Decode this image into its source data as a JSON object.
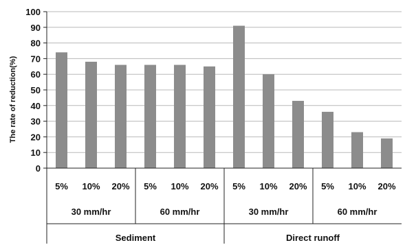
{
  "chart_data": {
    "type": "bar",
    "title": "",
    "ylabel": "The rate of reduction(%)",
    "xlabel": "",
    "ylim": [
      0,
      100
    ],
    "yticks": [
      0,
      10,
      20,
      30,
      40,
      50,
      60,
      70,
      80,
      90,
      100
    ],
    "grid": true,
    "legend": "none",
    "bar_color": "#8c8c8c",
    "categories": [
      "5%",
      "10%",
      "20%",
      "5%",
      "10%",
      "20%",
      "5%",
      "10%",
      "20%",
      "5%",
      "10%",
      "20%"
    ],
    "values": [
      74,
      68,
      66,
      66,
      66,
      65,
      91,
      60,
      43,
      36,
      23,
      19
    ],
    "groups_level1": [
      {
        "label": "30 mm/hr",
        "span": 3
      },
      {
        "label": "60 mm/hr",
        "span": 3
      },
      {
        "label": "30 mm/hr",
        "span": 3
      },
      {
        "label": "60 mm/hr",
        "span": 3
      }
    ],
    "groups_level2": [
      {
        "label": "Sediment",
        "span": 6
      },
      {
        "label": "Direct runoff",
        "span": 6
      }
    ]
  }
}
